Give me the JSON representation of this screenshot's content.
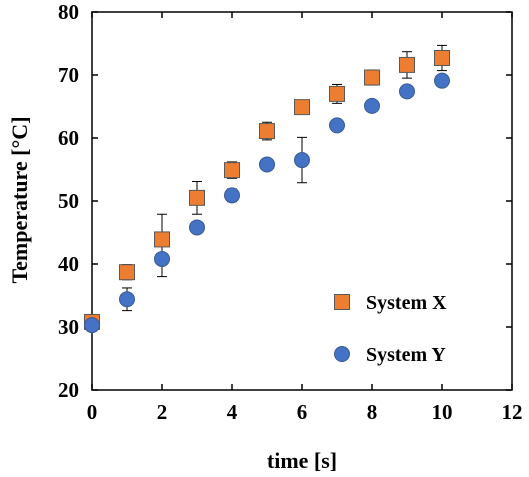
{
  "chart_data": {
    "type": "scatter",
    "xlabel": "time [s]",
    "ylabel": "Temperature  [°C]",
    "xlim": [
      0,
      12
    ],
    "ylim": [
      20,
      80
    ],
    "xticks": [
      0,
      2,
      4,
      6,
      8,
      10,
      12
    ],
    "yticks": [
      20,
      30,
      40,
      50,
      60,
      70,
      80
    ],
    "grid": false,
    "legend_position": "lower-right",
    "series": [
      {
        "name": "System X",
        "marker": "square",
        "color": "#ED7D31",
        "x": [
          0,
          1,
          2,
          3,
          4,
          5,
          6,
          7,
          8,
          9,
          10
        ],
        "y": [
          30.8,
          38.7,
          43.9,
          50.5,
          54.9,
          61.1,
          64.9,
          67.0,
          69.6,
          71.6,
          72.7
        ],
        "error": [
          0.5,
          1.2,
          4.0,
          2.6,
          1.3,
          1.4,
          0.4,
          1.5,
          1.2,
          2.1,
          2.0
        ]
      },
      {
        "name": "System Y",
        "marker": "circle",
        "color": "#4472C4",
        "x": [
          0,
          1,
          2,
          3,
          4,
          5,
          6,
          7,
          8,
          9,
          10
        ],
        "y": [
          30.3,
          34.4,
          40.8,
          45.8,
          50.9,
          55.8,
          56.5,
          62.0,
          65.1,
          67.4,
          69.1
        ],
        "error": [
          0.3,
          1.8,
          2.8,
          0.4,
          1.0,
          0.3,
          3.6,
          0.4,
          0.4,
          0.5,
          0.4
        ]
      }
    ]
  }
}
